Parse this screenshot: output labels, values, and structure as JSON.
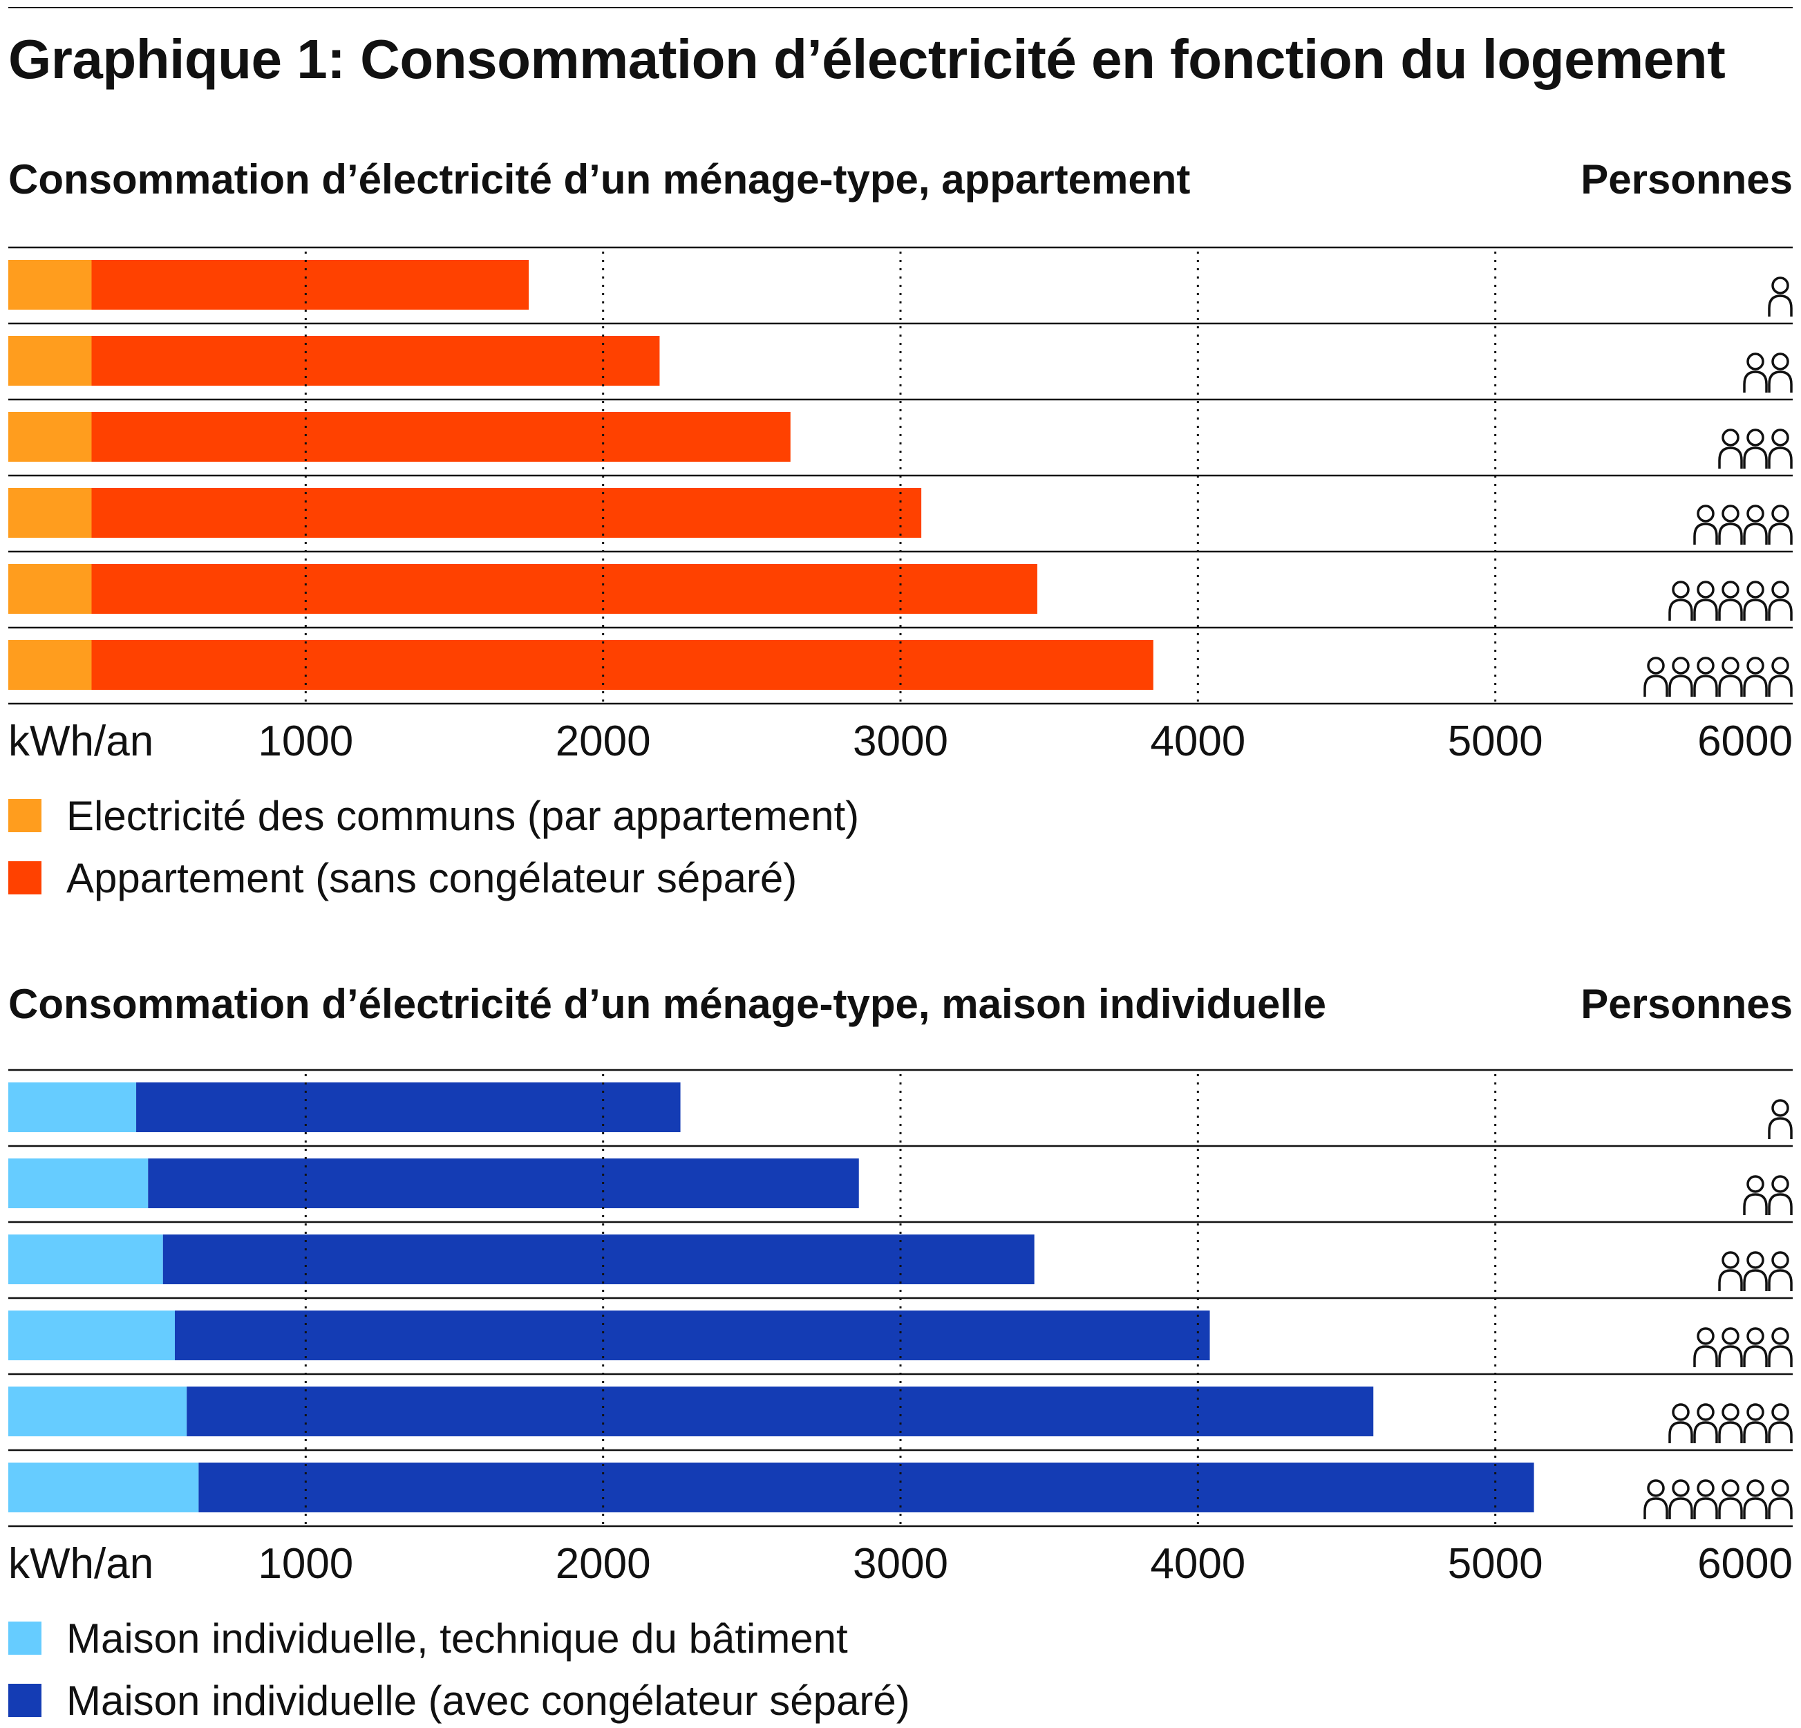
{
  "title": "Graphique 1: Consommation d’électricité en fonction du logement",
  "panels": [
    {
      "subtitle": "Consommation d’électricité d’un ménage-type, appartement",
      "persons_label": "Personnes",
      "axis_unit": "kWh/an",
      "legend": [
        {
          "label": "Electricité des communs (par appartement)",
          "color": "#FF9D1E"
        },
        {
          "label": "Appartement (sans congélateur séparé)",
          "color": "#FF4100"
        }
      ]
    },
    {
      "subtitle": "Consommation d’électricité d’un ménage-type, maison individuelle",
      "persons_label": "Personnes",
      "axis_unit": "kWh/an",
      "legend": [
        {
          "label": "Maison individuelle, technique du bâtiment",
          "color": "#66CCFF"
        },
        {
          "label": "Maison individuelle (avec congélateur séparé)",
          "color": "#143CB4"
        }
      ]
    }
  ],
  "chart_data": [
    {
      "type": "bar",
      "orientation": "horizontal",
      "stacked": true,
      "title": "Consommation d’électricité d’un ménage-type, appartement",
      "xlabel": "kWh/an",
      "categories": [
        1,
        2,
        3,
        4,
        5,
        6
      ],
      "category_icon": "person-icon",
      "xlim": [
        0,
        6000
      ],
      "xticks": [
        1000,
        2000,
        3000,
        4000,
        5000,
        6000
      ],
      "grid": "vertical dotted",
      "series": [
        {
          "name": "Electricité des communs (par appartement)",
          "color": "#FF9D1E",
          "values": [
            280,
            280,
            280,
            280,
            280,
            280
          ]
        },
        {
          "name": "Appartement (sans congélateur séparé)",
          "color": "#FF4100",
          "values": [
            1470,
            1910,
            2350,
            2790,
            3180,
            3570
          ]
        }
      ],
      "totals": [
        1750,
        2190,
        2630,
        3070,
        3460,
        3850
      ]
    },
    {
      "type": "bar",
      "orientation": "horizontal",
      "stacked": true,
      "title": "Consommation d’électricité d’un ménage-type, maison individuelle",
      "xlabel": "kWh/an",
      "categories": [
        1,
        2,
        3,
        4,
        5,
        6
      ],
      "category_icon": "person-icon",
      "xlim": [
        0,
        6000
      ],
      "xticks": [
        1000,
        2000,
        3000,
        4000,
        5000,
        6000
      ],
      "grid": "vertical dotted",
      "series": [
        {
          "name": "Maison individuelle, technique du bâtiment",
          "color": "#66CCFF",
          "values": [
            430,
            470,
            520,
            560,
            600,
            640
          ]
        },
        {
          "name": "Maison individuelle (avec congélateur séparé)",
          "color": "#143CB4",
          "values": [
            1830,
            2390,
            2930,
            3480,
            3990,
            4490
          ]
        }
      ],
      "totals": [
        2260,
        2860,
        3450,
        4040,
        4590,
        5130
      ]
    }
  ]
}
